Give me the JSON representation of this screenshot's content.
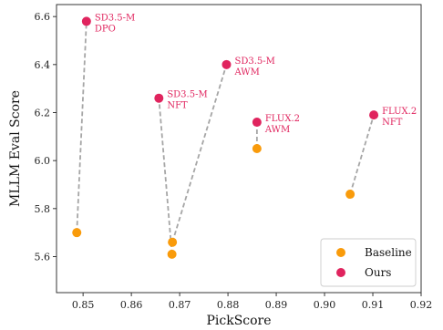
{
  "chart_data": {
    "type": "scatter",
    "title": "",
    "xlabel": "PickScore",
    "ylabel": "MLLM Eval Score",
    "xlim": [
      0.8445,
      0.92
    ],
    "ylim": [
      5.45,
      6.65
    ],
    "xticks": [
      "0.85",
      "0.86",
      "0.87",
      "0.88",
      "0.89",
      "0.90",
      "0.91",
      "0.92"
    ],
    "yticks": [
      "5.6",
      "5.8",
      "6.0",
      "6.2",
      "6.4",
      "6.6"
    ],
    "xtick_values": [
      0.85,
      0.86,
      0.87,
      0.88,
      0.89,
      0.9,
      0.91,
      0.92
    ],
    "ytick_values": [
      5.6,
      5.8,
      6.0,
      6.2,
      6.4,
      6.6
    ],
    "grid": false,
    "legend_position": "bottom-right",
    "series": [
      {
        "name": "Baseline",
        "color": "#f99b0b",
        "points": [
          {
            "x": 0.8487,
            "y": 5.7
          },
          {
            "x": 0.8685,
            "y": 5.66
          },
          {
            "x": 0.8684,
            "y": 5.61
          },
          {
            "x": 0.886,
            "y": 6.05
          },
          {
            "x": 0.9053,
            "y": 5.86
          }
        ]
      },
      {
        "name": "Ours",
        "color": "#e0245e",
        "points": [
          {
            "x": 0.8507,
            "y": 6.58,
            "label": [
              "SD3.5-M",
              "DPO"
            ]
          },
          {
            "x": 0.8797,
            "y": 6.4,
            "label": [
              "SD3.5-M",
              "AWM"
            ]
          },
          {
            "x": 0.8657,
            "y": 6.26,
            "label": [
              "SD3.5-M",
              "NFT"
            ]
          },
          {
            "x": 0.886,
            "y": 6.16,
            "label": [
              "FLUX.2",
              "AWM"
            ]
          },
          {
            "x": 0.9102,
            "y": 6.19,
            "label": [
              "FLUX.2",
              "NFT"
            ]
          }
        ]
      }
    ],
    "connections": [
      {
        "from": {
          "x": 0.8487,
          "y": 5.7
        },
        "to": {
          "x": 0.8507,
          "y": 6.58
        }
      },
      {
        "from": {
          "x": 0.8685,
          "y": 5.66
        },
        "to": {
          "x": 0.8797,
          "y": 6.4
        }
      },
      {
        "from": {
          "x": 0.8684,
          "y": 5.61
        },
        "to": {
          "x": 0.8657,
          "y": 6.26
        }
      },
      {
        "from": {
          "x": 0.886,
          "y": 6.05
        },
        "to": {
          "x": 0.886,
          "y": 6.16
        }
      },
      {
        "from": {
          "x": 0.9053,
          "y": 5.86
        },
        "to": {
          "x": 0.9102,
          "y": 6.19
        }
      }
    ],
    "connector_color": "#a6a6a6"
  }
}
